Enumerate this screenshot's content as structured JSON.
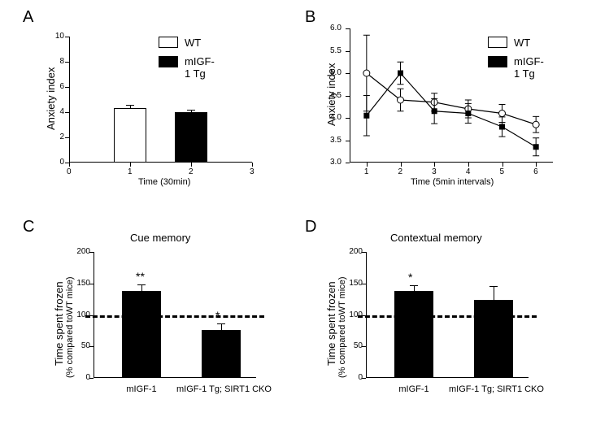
{
  "panelA": {
    "label": "A",
    "type": "bar",
    "ylabel": "Anxiety index",
    "xlabel": "Time (30min)",
    "x_ticks": [
      0,
      1,
      2,
      3
    ],
    "y_ticks": [
      0,
      2,
      4,
      6,
      8,
      10
    ],
    "bars": [
      {
        "x": 1,
        "value": 4.35,
        "err": 0.25,
        "fill": "#ffffff",
        "legend": "WT"
      },
      {
        "x": 2,
        "value": 4.0,
        "err": 0.18,
        "fill": "#000000",
        "legend": "mIGF-1 Tg"
      }
    ],
    "legend": [
      {
        "swatch": "#ffffff",
        "text": "WT"
      },
      {
        "swatch": "#000000",
        "text": "mIGF-1 Tg"
      }
    ]
  },
  "panelB": {
    "label": "B",
    "type": "line",
    "ylabel": "Anxiety index",
    "xlabel": "Time (5min intervals)",
    "x_ticks": [
      1,
      2,
      3,
      4,
      5,
      6
    ],
    "y_ticks": [
      3.0,
      3.5,
      4.0,
      4.5,
      5.0,
      5.5,
      6.0
    ],
    "series": [
      {
        "name": "WT",
        "marker": "open-circle",
        "color": "#000000",
        "fill": "#ffffff",
        "points": [
          {
            "x": 1,
            "y": 5.0,
            "err": 0.85
          },
          {
            "x": 2,
            "y": 4.4,
            "err": 0.25
          },
          {
            "x": 3,
            "y": 4.35,
            "err": 0.2
          },
          {
            "x": 4,
            "y": 4.2,
            "err": 0.2
          },
          {
            "x": 5,
            "y": 4.1,
            "err": 0.2
          },
          {
            "x": 6,
            "y": 3.85,
            "err": 0.18
          }
        ]
      },
      {
        "name": "mIGF-1 Tg",
        "marker": "filled-square",
        "color": "#000000",
        "fill": "#000000",
        "points": [
          {
            "x": 1,
            "y": 4.05,
            "err": 0.45
          },
          {
            "x": 2,
            "y": 5.0,
            "err": 0.25
          },
          {
            "x": 3,
            "y": 4.15,
            "err": 0.28
          },
          {
            "x": 4,
            "y": 4.1,
            "err": 0.22
          },
          {
            "x": 5,
            "y": 3.8,
            "err": 0.22
          },
          {
            "x": 6,
            "y": 3.35,
            "err": 0.2
          }
        ]
      }
    ],
    "legend": [
      {
        "swatch": "#ffffff",
        "text": "WT"
      },
      {
        "swatch": "#000000",
        "text": "mIGF-1 Tg"
      }
    ]
  },
  "panelC": {
    "label": "C",
    "type": "bar",
    "title": "Cue memory",
    "ylabel_line1": "Time spent frozen",
    "ylabel_line2": "(% compared toWT mice)",
    "y_ticks": [
      0,
      50,
      100,
      150,
      200
    ],
    "ref_line": 100,
    "bars": [
      {
        "cat": "mIGF-1",
        "value": 138,
        "err": 10,
        "sig": "**",
        "fill": "#000000"
      },
      {
        "cat": "mIGF-1 Tg; SIRT1 CKO",
        "value": 76,
        "err": 10,
        "sig": "*",
        "fill": "#000000"
      }
    ]
  },
  "panelD": {
    "label": "D",
    "type": "bar",
    "title": "Contextual memory",
    "ylabel_line1": "Time spent frozen",
    "ylabel_line2": "(% compared toWT mice)",
    "y_ticks": [
      0,
      50,
      100,
      150,
      200
    ],
    "ref_line": 100,
    "bars": [
      {
        "cat": "mIGF-1",
        "value": 138,
        "err": 9,
        "sig": "*",
        "fill": "#000000"
      },
      {
        "cat": "mIGF-1 Tg; SIRT1 CKO",
        "value": 124,
        "err": 22,
        "sig": "",
        "fill": "#000000"
      }
    ]
  }
}
